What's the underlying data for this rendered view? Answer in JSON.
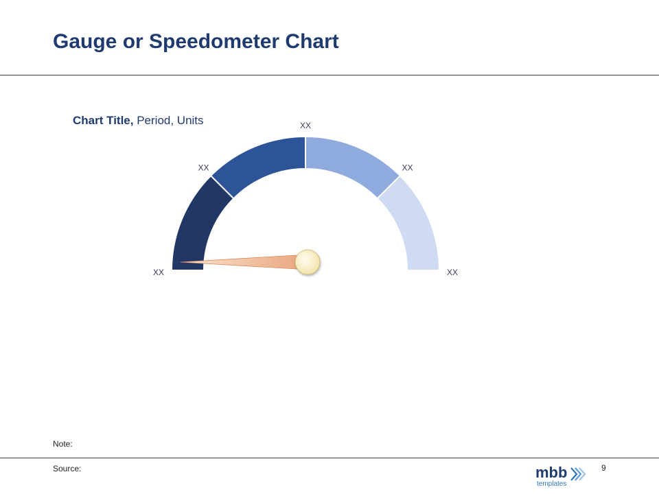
{
  "slide": {
    "title": "Gauge or Speedometer Chart",
    "note_label": "Note:",
    "source_label": "Source:",
    "page_number": "9"
  },
  "logo": {
    "brand": "mbb",
    "sub": "templates"
  },
  "chart_data": {
    "type": "gauge",
    "title_bold": "Chart Title,",
    "title_rest": " Period, Units",
    "segments": [
      {
        "label": "",
        "color": "#213866"
      },
      {
        "label": "",
        "color": "#2d5498"
      },
      {
        "label": "",
        "color": "#8faadc"
      },
      {
        "label": "",
        "color": "#cfdbf2"
      }
    ],
    "tick_labels": [
      "XX",
      "XX",
      "XX",
      "XX",
      "XX"
    ],
    "needle_value": 0.0,
    "needle_color": "#f4b183",
    "hub_color": "#fdf2c4",
    "range": [
      0,
      1
    ]
  }
}
